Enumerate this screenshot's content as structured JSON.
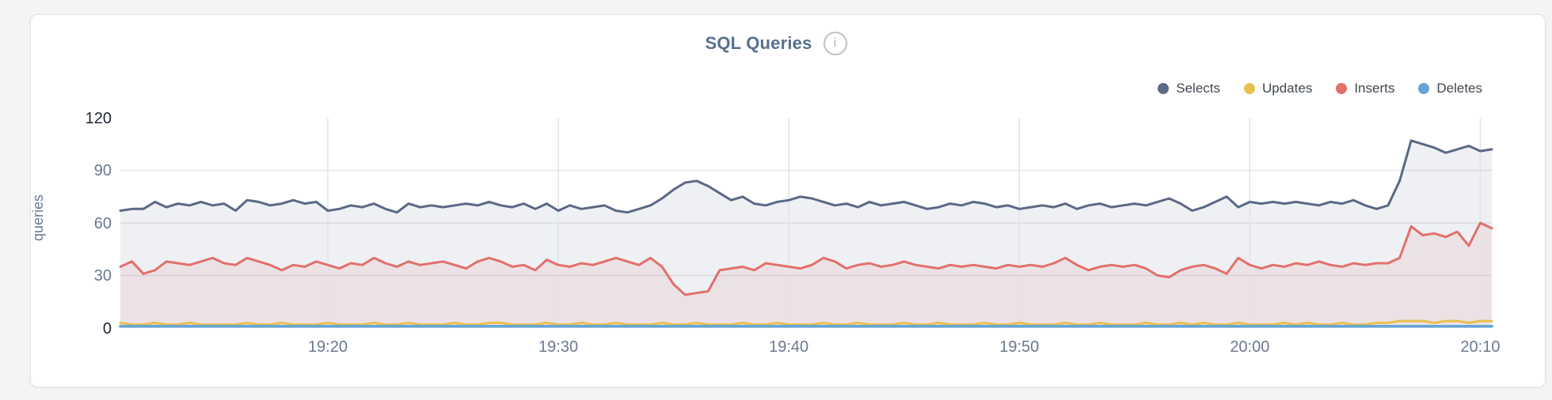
{
  "page": {
    "background": "#f4f4f5",
    "card_background": "#ffffff",
    "card_border": "#e3e3e6"
  },
  "header": {
    "title": "SQL Queries",
    "info_icon_glyph": "i"
  },
  "axis": {
    "tick_color": "#6b7892",
    "tick_color_major": "#1d2633",
    "grid_color_horizontal": "#e7e7ea",
    "grid_color_vertical": "#e3e3e6"
  },
  "chart_data": {
    "type": "area",
    "title": "SQL Queries",
    "ylabel": "queries",
    "xlabel": "",
    "ylim": [
      0,
      120
    ],
    "yticks": [
      120,
      90,
      60,
      30,
      0
    ],
    "grid": "horizontal lines at 30/60/90, vertical lines at time ticks",
    "legend_position": "top-right",
    "x_start_label": "19:11",
    "x_interval_seconds": 30,
    "x_total_minutes": 59.5,
    "xticks": [
      {
        "label": "19:20",
        "t": 9
      },
      {
        "label": "19:30",
        "t": 19
      },
      {
        "label": "19:40",
        "t": 29
      },
      {
        "label": "19:50",
        "t": 39
      },
      {
        "label": "20:00",
        "t": 49
      },
      {
        "label": "20:10",
        "t": 59
      }
    ],
    "series": [
      {
        "name": "Selects",
        "color": "#5b6886",
        "fill": true,
        "fill_opacity": 0.1,
        "values": [
          67,
          68,
          68,
          72,
          69,
          71,
          70,
          72,
          70,
          71,
          67,
          73,
          72,
          70,
          71,
          73,
          71,
          72,
          67,
          68,
          70,
          69,
          71,
          68,
          66,
          71,
          69,
          70,
          69,
          70,
          71,
          70,
          72,
          70,
          69,
          71,
          68,
          71,
          67,
          70,
          68,
          69,
          70,
          67,
          66,
          68,
          70,
          74,
          79,
          83,
          84,
          81,
          77,
          73,
          75,
          71,
          70,
          72,
          73,
          75,
          74,
          72,
          70,
          71,
          69,
          72,
          70,
          71,
          72,
          70,
          68,
          69,
          71,
          70,
          72,
          71,
          69,
          70,
          68,
          69,
          70,
          69,
          71,
          68,
          70,
          71,
          69,
          70,
          71,
          70,
          72,
          74,
          71,
          67,
          69,
          72,
          75,
          69,
          72,
          71,
          72,
          71,
          72,
          71,
          70,
          72,
          71,
          73,
          70,
          68,
          70,
          84,
          107,
          105,
          103,
          100,
          102,
          104,
          101,
          102
        ]
      },
      {
        "name": "Updates",
        "color": "#e9bf4f",
        "fill": false,
        "fill_opacity": 0,
        "values": [
          3,
          2,
          2,
          3,
          2,
          2,
          3,
          2,
          2,
          2,
          2,
          3,
          2,
          2,
          3,
          2,
          2,
          2,
          3,
          2,
          2,
          2,
          3,
          2,
          2,
          3,
          2,
          2,
          2,
          3,
          2,
          2,
          3,
          3,
          2,
          2,
          2,
          3,
          2,
          2,
          3,
          2,
          2,
          3,
          2,
          2,
          2,
          3,
          2,
          2,
          3,
          2,
          2,
          2,
          3,
          2,
          2,
          3,
          2,
          2,
          2,
          3,
          2,
          2,
          3,
          2,
          2,
          2,
          3,
          2,
          2,
          3,
          2,
          2,
          2,
          3,
          2,
          2,
          3,
          2,
          2,
          2,
          3,
          2,
          2,
          3,
          2,
          2,
          2,
          3,
          2,
          2,
          3,
          2,
          3,
          2,
          2,
          3,
          2,
          2,
          2,
          3,
          2,
          3,
          2,
          2,
          3,
          2,
          2,
          3,
          3,
          4,
          4,
          4,
          3,
          4,
          4,
          3,
          4,
          4
        ]
      },
      {
        "name": "Inserts",
        "color": "#e2706a",
        "fill": true,
        "fill_opacity": 0.1,
        "values": [
          35,
          38,
          31,
          33,
          38,
          37,
          36,
          38,
          40,
          37,
          36,
          40,
          38,
          36,
          33,
          36,
          35,
          38,
          36,
          34,
          37,
          36,
          40,
          37,
          35,
          38,
          36,
          37,
          38,
          36,
          34,
          38,
          40,
          38,
          35,
          36,
          33,
          39,
          36,
          35,
          37,
          36,
          38,
          40,
          38,
          36,
          40,
          35,
          25,
          19,
          20,
          21,
          33,
          34,
          35,
          33,
          37,
          36,
          35,
          34,
          36,
          40,
          38,
          34,
          36,
          37,
          35,
          36,
          38,
          36,
          35,
          34,
          36,
          35,
          36,
          35,
          34,
          36,
          35,
          36,
          35,
          37,
          40,
          36,
          33,
          35,
          36,
          35,
          36,
          34,
          30,
          29,
          33,
          35,
          36,
          34,
          31,
          40,
          36,
          34,
          36,
          35,
          37,
          36,
          38,
          36,
          35,
          37,
          36,
          37,
          37,
          40,
          58,
          53,
          54,
          52,
          55,
          47,
          60,
          57
        ]
      },
      {
        "name": "Deletes",
        "color": "#64a5d6",
        "fill": false,
        "fill_opacity": 0,
        "values": [
          1,
          1,
          1,
          1,
          1,
          1,
          1,
          1,
          1,
          1,
          1,
          1,
          1,
          1,
          1,
          1,
          1,
          1,
          1,
          1,
          1,
          1,
          1,
          1,
          1,
          1,
          1,
          1,
          1,
          1,
          1,
          1,
          1,
          1,
          1,
          1,
          1,
          1,
          1,
          1,
          1,
          1,
          1,
          1,
          1,
          1,
          1,
          1,
          1,
          1,
          1,
          1,
          1,
          1,
          1,
          1,
          1,
          1,
          1,
          1,
          1,
          1,
          1,
          1,
          1,
          1,
          1,
          1,
          1,
          1,
          1,
          1,
          1,
          1,
          1,
          1,
          1,
          1,
          1,
          1,
          1,
          1,
          1,
          1,
          1,
          1,
          1,
          1,
          1,
          1,
          1,
          1,
          1,
          1,
          1,
          1,
          1,
          1,
          1,
          1,
          1,
          1,
          1,
          1,
          1,
          1,
          1,
          1,
          1,
          1,
          1,
          1,
          1,
          1,
          1,
          1,
          1,
          1,
          1,
          1
        ]
      }
    ]
  }
}
